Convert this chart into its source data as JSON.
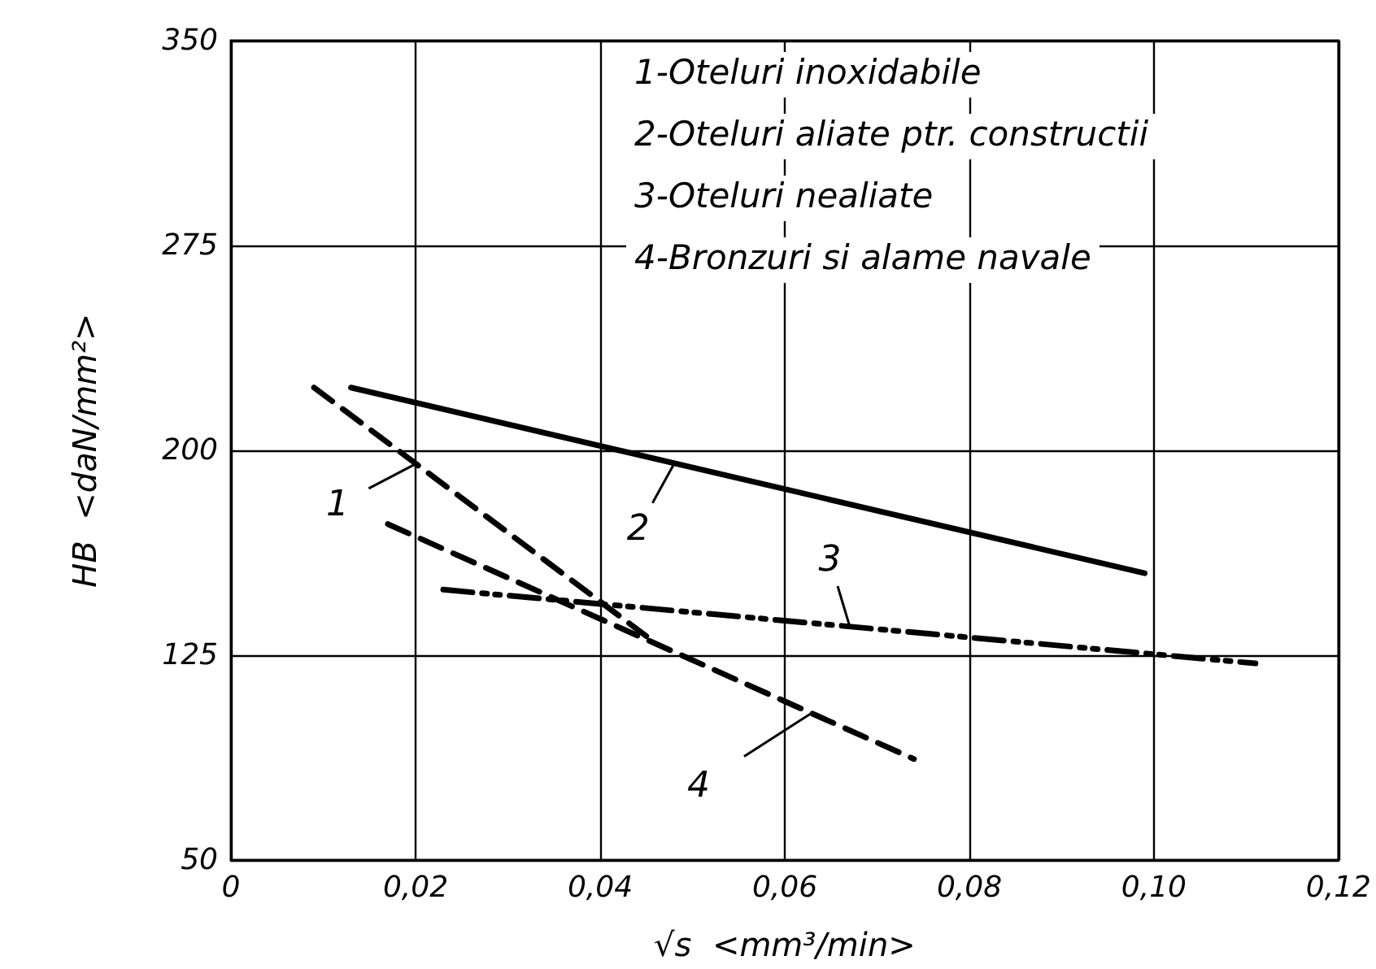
{
  "chart_data": {
    "type": "line",
    "xlabel": "√s  <mm³/min>",
    "ylabel": "HB  <daN/mm²>",
    "annotations": [
      "1-Oteluri inoxidabile",
      "2-Oteluri aliate ptr. constructii",
      "3-Oteluri nealiate",
      "4-Bronzuri si alame navale",
      {
        "text": "1",
        "x": 0.02,
        "y": 195
      },
      {
        "text": "2",
        "x": 0.048,
        "y": 195
      },
      {
        "text": "3",
        "x": 0.067,
        "y": 136
      },
      {
        "text": "4",
        "x": 0.063,
        "y": 104
      }
    ],
    "series": [
      {
        "color": "#000000",
        "line_style": "dashed",
        "x": [
          0.009,
          0.045
        ],
        "values": [
          223,
          132
        ]
      },
      {
        "color": "#000000",
        "line_style": "solid",
        "x": [
          0.013,
          0.099
        ],
        "values": [
          223,
          155
        ]
      },
      {
        "color": "#000000",
        "line_style": "dotted",
        "x": [
          0.023,
          0.111
        ],
        "values": [
          149,
          122
        ]
      },
      {
        "color": "#000000",
        "line_style": "dashed",
        "x": [
          0.017,
          0.074
        ],
        "values": [
          173,
          87
        ]
      }
    ],
    "xlim": [
      0,
      0.12
    ],
    "xticks": [
      0,
      {
        "value": 0.02,
        "label": "0,02"
      },
      {
        "value": 0.04,
        "label": "0,04"
      },
      {
        "value": 0.06,
        "label": "0,06"
      },
      {
        "value": 0.08,
        "label": "0,08"
      },
      {
        "value": 0.1,
        "label": "0,10"
      },
      {
        "value": 0.12,
        "label": "0,12"
      }
    ],
    "ylim": [
      50,
      350
    ],
    "yticks": [
      50,
      125,
      200,
      275,
      350
    ],
    "grid": true,
    "marker": "none"
  }
}
